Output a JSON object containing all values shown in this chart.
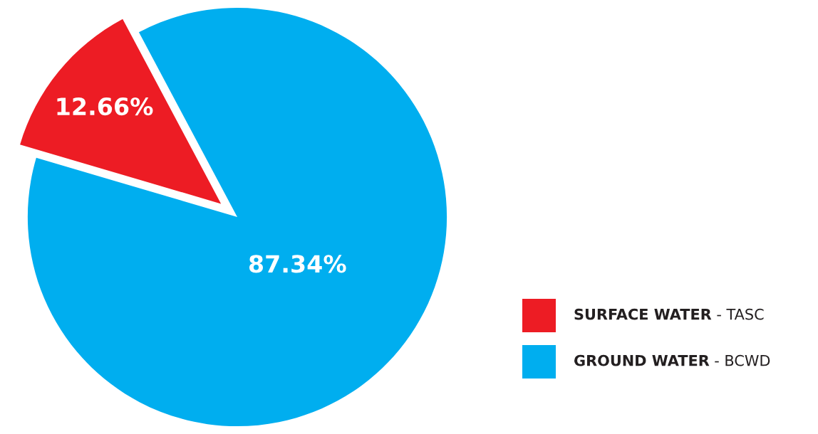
{
  "chart_data": {
    "type": "pie",
    "categories": [
      "SURFACE WATER - TASC",
      "GROUND WATER - BCWD"
    ],
    "values": [
      12.66,
      87.34
    ],
    "value_labels": [
      "12.66%",
      "87.34%"
    ],
    "colors": [
      "#ed1c24",
      "#00aeef"
    ],
    "legend": "bottom right"
  }
}
